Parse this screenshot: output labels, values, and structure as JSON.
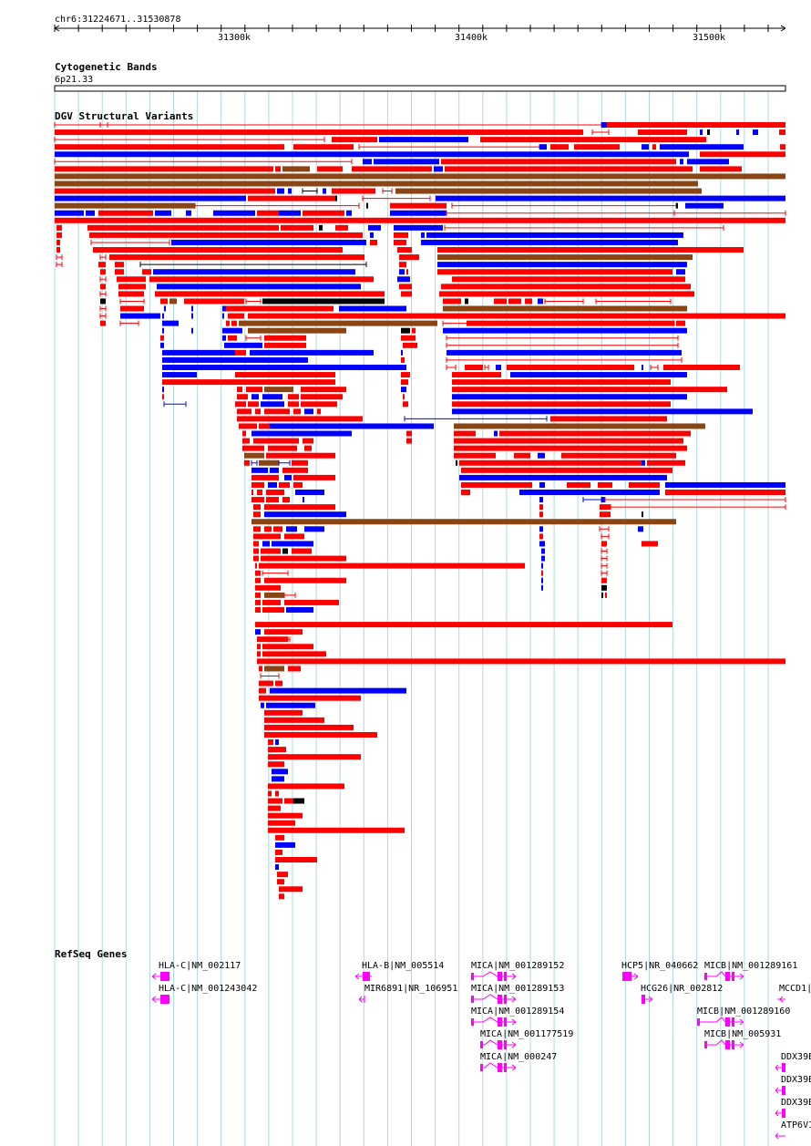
{
  "ruler": {
    "position": "chr6:31224671..31530878",
    "ticks": [
      "31300k",
      "31400k",
      "31500k"
    ]
  },
  "tracks": {
    "cyto_title": "Cytogenetic Bands",
    "cyto_band": "6p21.33",
    "dgv_title": "DGV Structural Variants",
    "refseq_title": "RefSeq Genes"
  },
  "colors": {
    "gain": "#ff0000",
    "loss": "#0000ff",
    "gain_loss": "#8b4513",
    "other": "#000000",
    "gene": "#ff00ff",
    "grid": "#add8e6"
  },
  "genes": [
    {
      "label": "HLA-C|NM_002117",
      "strand": "-"
    },
    {
      "label": "HLA-C|NM_001243042",
      "strand": "-"
    },
    {
      "label": "HLA-B|NM_005514",
      "strand": "-"
    },
    {
      "label": "MIR6891|NR_106951",
      "strand": "-"
    },
    {
      "label": "MICA|NM_001289152",
      "strand": "+"
    },
    {
      "label": "MICA|NM_001289153",
      "strand": "+"
    },
    {
      "label": "MICA|NM_001289154",
      "strand": "+"
    },
    {
      "label": "MICA|NM_001177519",
      "strand": "+"
    },
    {
      "label": "MICA|NM_000247",
      "strand": "+"
    },
    {
      "label": "HCP5|NR_040662",
      "strand": "+"
    },
    {
      "label": "HCG26|NR_002812",
      "strand": "+"
    },
    {
      "label": "MICB|NM_001289161",
      "strand": "+"
    },
    {
      "label": "MICB|NM_001289160",
      "strand": "+"
    },
    {
      "label": "MICB|NM_005931",
      "strand": "+"
    },
    {
      "label": "MCCD1|",
      "strand": "-"
    },
    {
      "label": "DDX39B",
      "strand": "-"
    },
    {
      "label": "DDX39B",
      "strand": "-"
    },
    {
      "label": "DDX39B",
      "strand": "-"
    },
    {
      "label": "ATP6V1",
      "strand": "-"
    }
  ]
}
